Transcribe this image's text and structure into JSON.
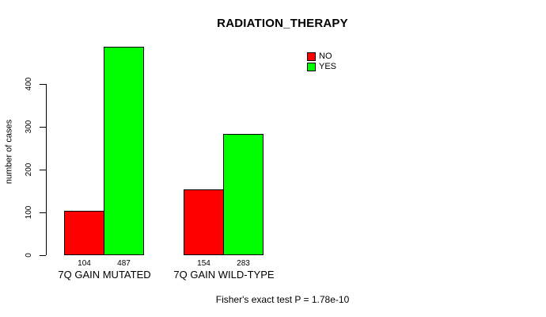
{
  "title": "RADIATION_THERAPY",
  "footer": {
    "annotation": "Fisher's exact test P = 1.78e-10"
  },
  "legend": {
    "items": [
      {
        "label": "NO",
        "color": "#FF0000"
      },
      {
        "label": "YES",
        "color": "#00FF00"
      }
    ]
  },
  "chart_data": {
    "type": "bar",
    "title": "RADIATION_THERAPY",
    "xlabel": "",
    "ylabel": "number of cases",
    "ylim": [
      0,
      490
    ],
    "yticks": [
      0,
      100,
      200,
      300,
      400
    ],
    "grid": false,
    "legend_position": "top-right",
    "categories": [
      "7Q GAIN MUTATED",
      "7Q GAIN WILD-TYPE"
    ],
    "series": [
      {
        "name": "NO",
        "color": "#FF0000",
        "values": [
          104,
          154
        ]
      },
      {
        "name": "YES",
        "color": "#00FF00",
        "values": [
          487,
          283
        ]
      }
    ],
    "bar_value_labels": [
      [
        104,
        487
      ],
      [
        154,
        283
      ]
    ],
    "annotation": "Fisher's exact test P = 1.78e-10"
  }
}
